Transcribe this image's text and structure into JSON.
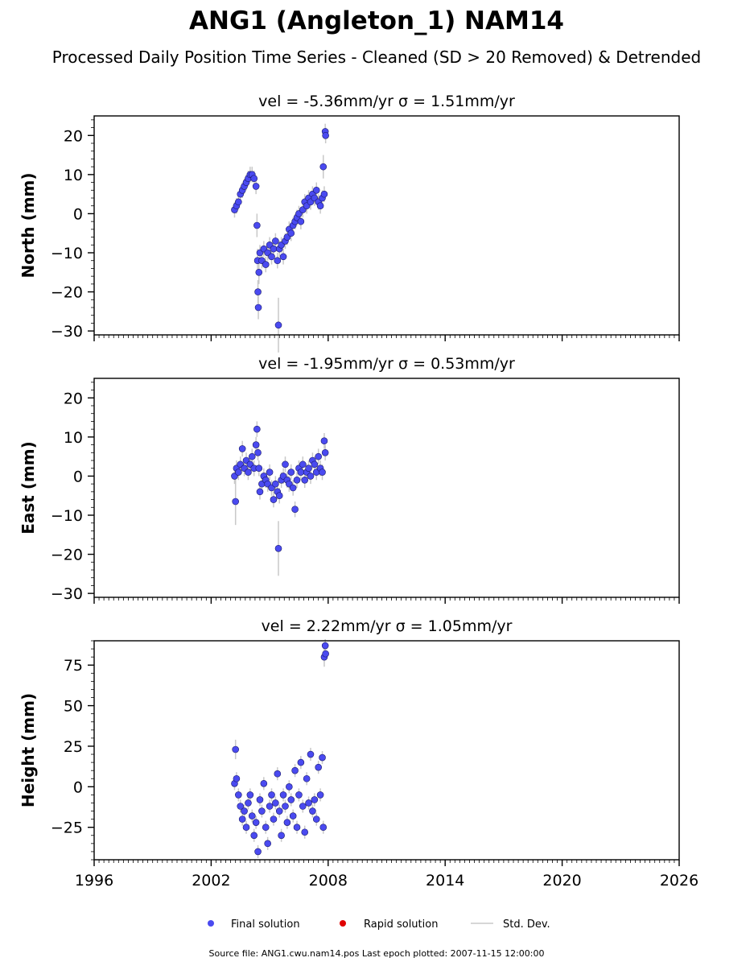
{
  "figure": {
    "title": "ANG1 (Angleton_1) NAM14",
    "subtitle": "Processed Daily Position Time Series - Cleaned (SD > 20 Removed) & Detrended",
    "footer": "Source file: ANG1.cwu.nam14.pos  Last epoch plotted: 2007-11-15 12:00:00"
  },
  "legend": [
    {
      "label": "Final solution",
      "color": "#4a4af0",
      "marker": "dot"
    },
    {
      "label": "Rapid solution",
      "color": "#e00000",
      "marker": "dot"
    },
    {
      "label": "Std. Dev.",
      "color": "#c8c8c8",
      "marker": "line"
    }
  ],
  "chart_data": [
    {
      "type": "scatter",
      "title": "vel = -5.36mm/yr   σ = 1.51mm/yr",
      "ylabel": "North (mm)",
      "xlim": [
        1996,
        2026
      ],
      "ylim": [
        -31,
        25
      ],
      "xticks": [
        1996,
        2002,
        2008,
        2014,
        2020,
        2026
      ],
      "yticks": [
        -30,
        -20,
        -10,
        0,
        10,
        20
      ],
      "tick_labels_shown": false,
      "series": [
        {
          "x": [
            2003.2,
            2003.3,
            2003.4,
            2003.5,
            2003.6,
            2003.7,
            2003.8,
            2003.9,
            2004.0,
            2004.1,
            2004.2,
            2004.3,
            2004.35,
            2004.38,
            2004.4,
            2004.42,
            2004.45,
            2004.5,
            2004.6,
            2004.7,
            2004.8,
            2004.9,
            2005.0,
            2005.1,
            2005.2,
            2005.3,
            2005.4,
            2005.45,
            2005.5,
            2005.6,
            2005.7,
            2005.8,
            2005.9,
            2006.0,
            2006.1,
            2006.2,
            2006.3,
            2006.4,
            2006.5,
            2006.6,
            2006.7,
            2006.8,
            2006.9,
            2007.0,
            2007.1,
            2007.2,
            2007.3,
            2007.4,
            2007.5,
            2007.6,
            2007.7,
            2007.75,
            2007.8,
            2007.85,
            2007.87
          ],
          "y": [
            1,
            2,
            3,
            5,
            6,
            7,
            8,
            9,
            10,
            10,
            9,
            7,
            -3,
            -12,
            -20,
            -24,
            -15,
            -10,
            -12,
            -9,
            -13,
            -10,
            -8,
            -11,
            -9,
            -7,
            -12,
            -28.5,
            -9,
            -8,
            -11,
            -7,
            -6,
            -4,
            -5,
            -3,
            -2,
            -1,
            0,
            -2,
            1,
            3,
            2,
            4,
            3,
            5,
            4,
            6,
            3,
            2,
            4,
            12,
            5,
            21,
            20
          ],
          "err": [
            2,
            2,
            2,
            2,
            2,
            2,
            2,
            2,
            2,
            2,
            2,
            2,
            3,
            3,
            3,
            3,
            3,
            2,
            2,
            2,
            2,
            2,
            2,
            2,
            2,
            2,
            2,
            7,
            2,
            2,
            2,
            2,
            2,
            2,
            2,
            2,
            2,
            2,
            2,
            2,
            2,
            2,
            2,
            2,
            2,
            2,
            2,
            2,
            2,
            2,
            2,
            3,
            2,
            2,
            2
          ]
        }
      ]
    },
    {
      "type": "scatter",
      "title": "vel = -1.95mm/yr   σ = 0.53mm/yr",
      "ylabel": "East (mm)",
      "xlim": [
        1996,
        2026
      ],
      "ylim": [
        -31,
        25
      ],
      "xticks": [
        1996,
        2002,
        2008,
        2014,
        2020,
        2026
      ],
      "yticks": [
        -30,
        -20,
        -10,
        0,
        10,
        20
      ],
      "tick_labels_shown": false,
      "series": [
        {
          "x": [
            2003.2,
            2003.25,
            2003.3,
            2003.4,
            2003.5,
            2003.6,
            2003.7,
            2003.8,
            2003.9,
            2004.0,
            2004.1,
            2004.2,
            2004.3,
            2004.35,
            2004.4,
            2004.45,
            2004.5,
            2004.6,
            2004.7,
            2004.8,
            2004.9,
            2005.0,
            2005.1,
            2005.2,
            2005.3,
            2005.4,
            2005.45,
            2005.5,
            2005.6,
            2005.7,
            2005.8,
            2005.9,
            2006.0,
            2006.1,
            2006.2,
            2006.3,
            2006.4,
            2006.5,
            2006.6,
            2006.7,
            2006.8,
            2006.9,
            2007.0,
            2007.1,
            2007.2,
            2007.3,
            2007.4,
            2007.5,
            2007.6,
            2007.7,
            2007.8,
            2007.85
          ],
          "y": [
            0,
            -6.5,
            2,
            1,
            3,
            7,
            2,
            4,
            1,
            3,
            5,
            2,
            8,
            12,
            6,
            2,
            -4,
            -2,
            0,
            -1,
            -2,
            1,
            -3,
            -6,
            -2,
            -4,
            -18.5,
            -5,
            -1,
            0,
            3,
            -1,
            -2,
            1,
            -3,
            -8.5,
            -1,
            2,
            1,
            3,
            -1,
            1,
            2,
            0,
            4,
            3,
            1,
            5,
            2,
            1,
            9,
            6
          ],
          "err": [
            2,
            6,
            2,
            2,
            2,
            2,
            2,
            2,
            2,
            2,
            2,
            2,
            2,
            2,
            2,
            2,
            2,
            2,
            2,
            2,
            2,
            2,
            2,
            2,
            2,
            2,
            7,
            2,
            2,
            2,
            2,
            2,
            2,
            2,
            2,
            2,
            2,
            2,
            2,
            2,
            2,
            2,
            2,
            2,
            2,
            2,
            2,
            2,
            2,
            2,
            2,
            2
          ]
        }
      ]
    },
    {
      "type": "scatter",
      "title": "vel = 2.22mm/yr   σ = 1.05mm/yr",
      "ylabel": "Height (mm)",
      "xlim": [
        1996,
        2026
      ],
      "ylim": [
        -45,
        90
      ],
      "xticks": [
        1996,
        2002,
        2008,
        2014,
        2020,
        2026
      ],
      "yticks": [
        -25,
        0,
        25,
        50,
        75
      ],
      "tick_labels_shown": true,
      "series": [
        {
          "x": [
            2003.2,
            2003.25,
            2003.3,
            2003.4,
            2003.5,
            2003.6,
            2003.7,
            2003.8,
            2003.9,
            2004.0,
            2004.1,
            2004.2,
            2004.3,
            2004.4,
            2004.5,
            2004.6,
            2004.7,
            2004.8,
            2004.9,
            2005.0,
            2005.1,
            2005.2,
            2005.3,
            2005.4,
            2005.5,
            2005.6,
            2005.7,
            2005.8,
            2005.9,
            2006.0,
            2006.1,
            2006.2,
            2006.3,
            2006.4,
            2006.5,
            2006.6,
            2006.7,
            2006.8,
            2006.9,
            2007.0,
            2007.1,
            2007.2,
            2007.3,
            2007.4,
            2007.5,
            2007.6,
            2007.7,
            2007.75,
            2007.8,
            2007.85,
            2007.87
          ],
          "y": [
            2,
            23,
            5,
            -5,
            -12,
            -20,
            -15,
            -25,
            -10,
            -5,
            -18,
            -30,
            -22,
            -40,
            -8,
            -15,
            2,
            -25,
            -35,
            -12,
            -5,
            -20,
            -10,
            8,
            -15,
            -30,
            -5,
            -12,
            -22,
            0,
            -8,
            -18,
            10,
            -25,
            -5,
            15,
            -12,
            -28,
            5,
            -10,
            20,
            -15,
            -8,
            -20,
            12,
            -5,
            18,
            -25,
            80,
            87,
            82
          ],
          "err": [
            4,
            6,
            4,
            4,
            4,
            4,
            4,
            4,
            4,
            4,
            4,
            4,
            4,
            4,
            4,
            4,
            4,
            4,
            4,
            4,
            4,
            4,
            4,
            4,
            4,
            4,
            4,
            4,
            4,
            4,
            4,
            4,
            4,
            4,
            4,
            4,
            4,
            4,
            4,
            4,
            4,
            4,
            4,
            4,
            4,
            4,
            4,
            4,
            6,
            4,
            4
          ]
        }
      ]
    }
  ]
}
